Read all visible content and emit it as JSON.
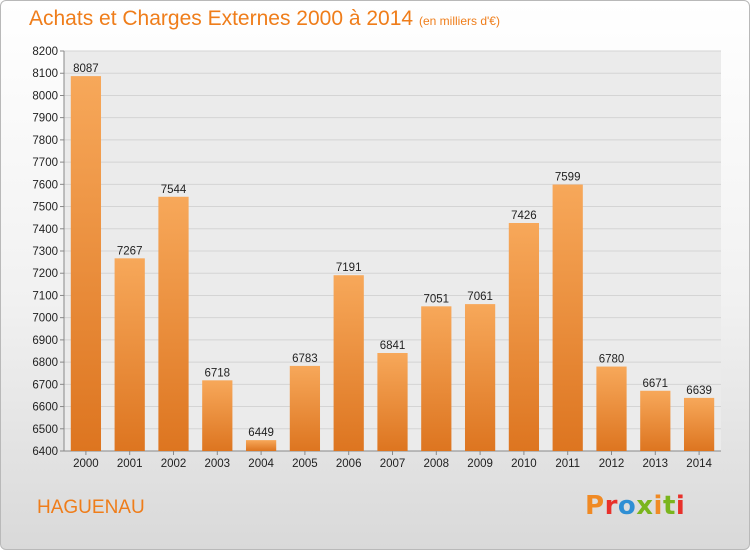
{
  "header": {
    "title": "Achats et Charges Externes 2000 à 2014",
    "subtitle": "(en milliers d'€)"
  },
  "footer": {
    "city": "HAGUENAU",
    "logo_text": "Proxiti"
  },
  "colors": {
    "accent": "#ef7d1a",
    "bar_light": "#f7a85a",
    "bar_dark": "#dd7520",
    "grid": "#d4d4d4",
    "logo": [
      "#f08a24",
      "#e8312b",
      "#2f8fd4",
      "#7ab51d",
      "#f08a24",
      "#7ab51d",
      "#e8312b"
    ]
  },
  "chart_data": {
    "type": "bar",
    "title": "Achats et Charges Externes 2000 à 2014",
    "subtitle": "(en milliers d'€)",
    "categories": [
      "2000",
      "2001",
      "2002",
      "2003",
      "2004",
      "2005",
      "2006",
      "2007",
      "2008",
      "2009",
      "2010",
      "2011",
      "2012",
      "2013",
      "2014"
    ],
    "values": [
      8087,
      7267,
      7544,
      6718,
      6449,
      6783,
      7191,
      6841,
      7051,
      7061,
      7426,
      7599,
      6780,
      6671,
      6639
    ],
    "ylim": [
      6400,
      8200
    ],
    "yticks": [
      6400,
      6500,
      6600,
      6700,
      6800,
      6900,
      7000,
      7100,
      7200,
      7300,
      7400,
      7500,
      7600,
      7700,
      7800,
      7900,
      8000,
      8100,
      8200
    ],
    "grid": true,
    "data_labels": true
  }
}
